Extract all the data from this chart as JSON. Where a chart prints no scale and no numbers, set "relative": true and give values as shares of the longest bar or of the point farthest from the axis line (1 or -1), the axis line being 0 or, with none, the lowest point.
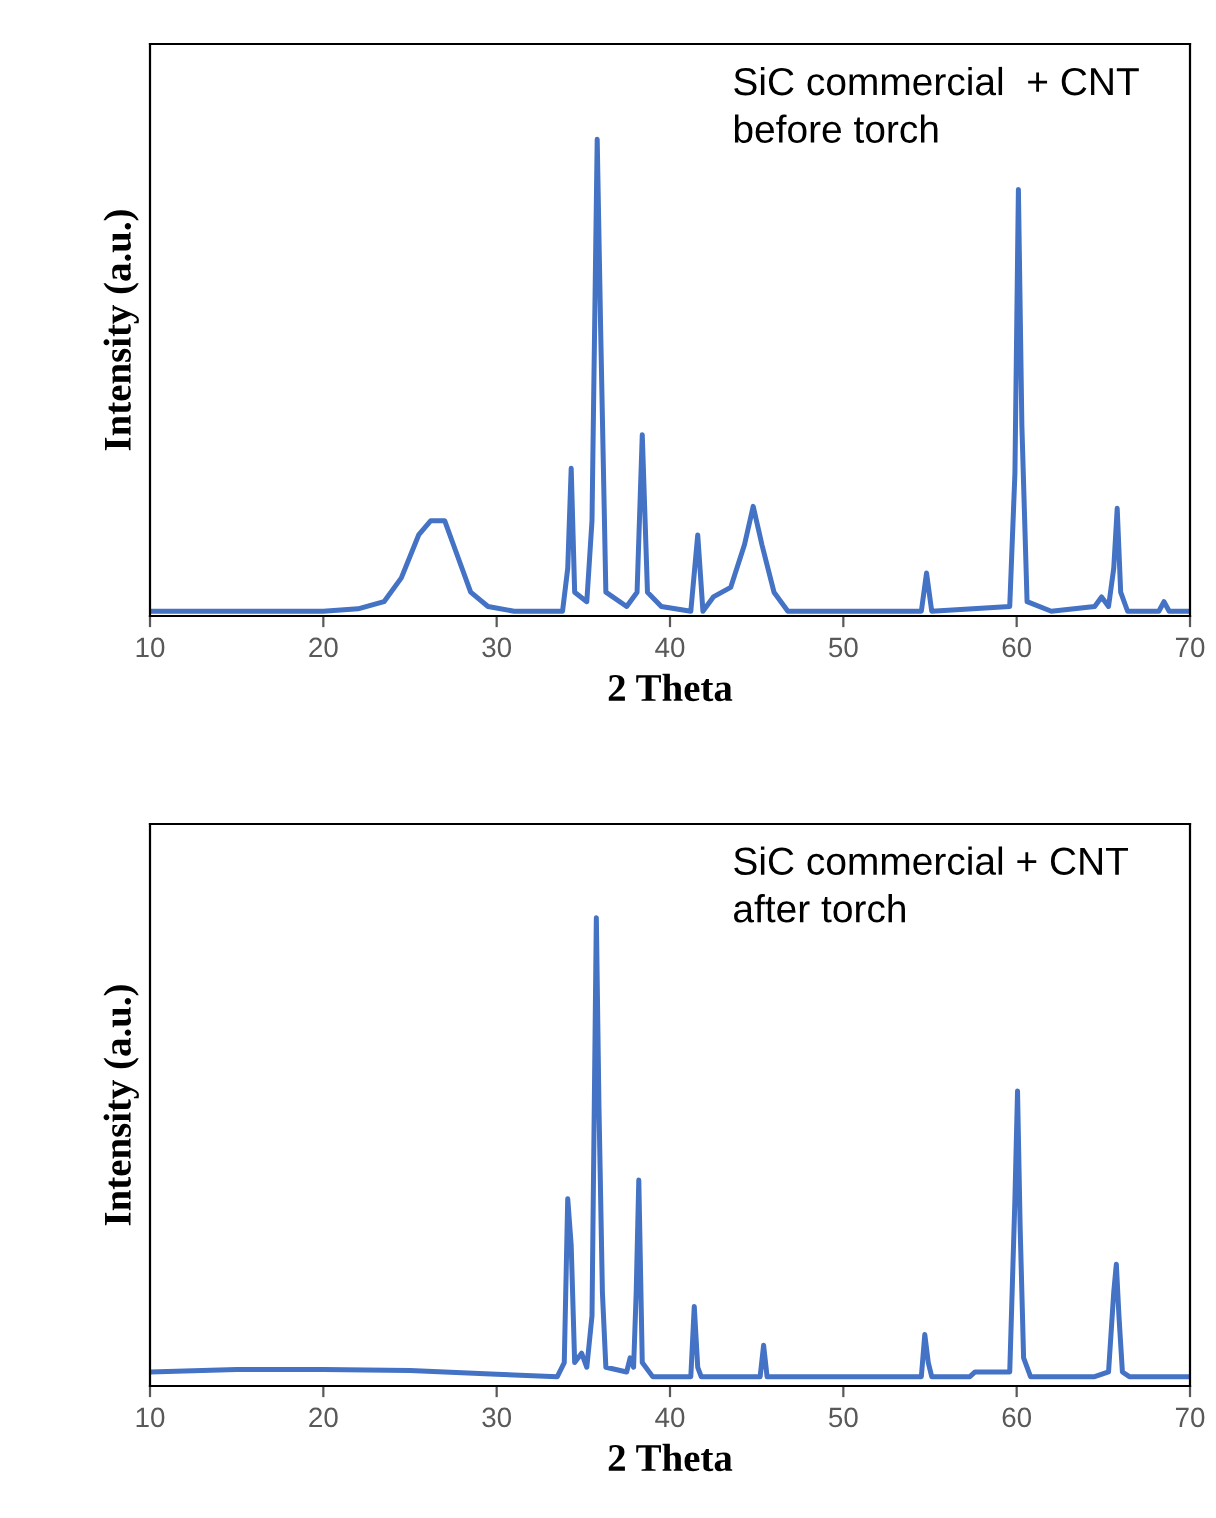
{
  "chart_data": [
    {
      "type": "line",
      "relative": true,
      "xlabel": "2 Theta",
      "ylabel": "Intensity (a.u.)",
      "annotations": [
        "SiC commercial  + CNT\nbefore torch"
      ],
      "xlim": [
        10,
        70
      ],
      "xticks": [
        10,
        20,
        30,
        40,
        50,
        60,
        70
      ],
      "grid": false,
      "legend": false,
      "tick_labels": "x",
      "series": [
        {
          "color": "#4472c4",
          "x": [
            10,
            15,
            20,
            22,
            23.5,
            24.5,
            25.5,
            26.2,
            27,
            27.5,
            28.5,
            29.5,
            31,
            33.8,
            34.1,
            34.3,
            34.5,
            35.2,
            35.5,
            35.8,
            36.0,
            36.3,
            37.5,
            38.1,
            38.4,
            38.7,
            39.5,
            41.2,
            41.6,
            41.9,
            42.5,
            43.5,
            44.3,
            44.8,
            45.3,
            46,
            46.8,
            50,
            54.5,
            54.8,
            55.1,
            59.6,
            59.9,
            60.1,
            60.3,
            60.6,
            62,
            64.5,
            64.9,
            65.3,
            65.6,
            65.8,
            66.0,
            66.4,
            68.2,
            68.5,
            68.8,
            70
          ],
          "values": [
            0.01,
            0.01,
            0.01,
            0.015,
            0.03,
            0.08,
            0.17,
            0.2,
            0.2,
            0.15,
            0.05,
            0.02,
            0.01,
            0.01,
            0.1,
            0.31,
            0.05,
            0.03,
            0.2,
            1.0,
            0.6,
            0.05,
            0.02,
            0.05,
            0.38,
            0.05,
            0.02,
            0.01,
            0.17,
            0.01,
            0.04,
            0.06,
            0.15,
            0.23,
            0.15,
            0.05,
            0.01,
            0.01,
            0.01,
            0.09,
            0.01,
            0.02,
            0.3,
            0.895,
            0.4,
            0.03,
            0.01,
            0.02,
            0.04,
            0.02,
            0.1,
            0.226,
            0.05,
            0.01,
            0.01,
            0.03,
            0.01,
            0.01
          ]
        }
      ]
    },
    {
      "type": "line",
      "relative": true,
      "xlabel": "2 Theta",
      "ylabel": "Intensity (a.u.)",
      "annotations": [
        "SiC commercial + CNT\nafter torch"
      ],
      "xlim": [
        10,
        70
      ],
      "xticks": [
        10,
        20,
        30,
        40,
        50,
        60,
        70
      ],
      "grid": false,
      "legend": false,
      "tick_labels": "x",
      "series": [
        {
          "color": "#4472c4",
          "x": [
            10,
            15,
            20,
            25,
            30,
            33.5,
            33.9,
            34.1,
            34.3,
            34.5,
            34.9,
            35.2,
            35.5,
            35.75,
            35.9,
            36.1,
            36.3,
            37.5,
            37.7,
            37.9,
            38.05,
            38.2,
            38.4,
            39,
            41.2,
            41.4,
            41.6,
            41.8,
            45.2,
            45.4,
            45.6,
            54.5,
            54.7,
            54.9,
            55.1,
            57.3,
            57.6,
            59.6,
            59.9,
            60.05,
            60.2,
            60.4,
            60.8,
            64.5,
            65.3,
            65.6,
            65.75,
            65.9,
            66.1,
            66.5,
            70
          ],
          "values": [
            0.03,
            0.035,
            0.035,
            0.033,
            0.025,
            0.02,
            0.05,
            0.4,
            0.3,
            0.05,
            0.07,
            0.04,
            0.15,
            1.0,
            0.6,
            0.2,
            0.04,
            0.03,
            0.06,
            0.04,
            0.2,
            0.44,
            0.05,
            0.02,
            0.02,
            0.17,
            0.04,
            0.02,
            0.02,
            0.087,
            0.02,
            0.02,
            0.11,
            0.05,
            0.02,
            0.02,
            0.03,
            0.03,
            0.4,
            0.63,
            0.34,
            0.06,
            0.02,
            0.02,
            0.03,
            0.2,
            0.26,
            0.15,
            0.03,
            0.02,
            0.02
          ]
        }
      ]
    }
  ]
}
